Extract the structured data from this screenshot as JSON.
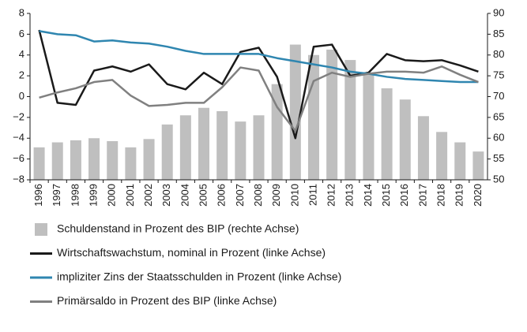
{
  "chart_data": {
    "type": "combo",
    "categories": [
      "1996",
      "1997",
      "1998",
      "1999",
      "2000",
      "2001",
      "2002",
      "2003",
      "2004",
      "2005",
      "2006",
      "2007",
      "2008",
      "2009",
      "2010",
      "2011",
      "2012",
      "2013",
      "2014",
      "2015",
      "2016",
      "2017",
      "2018",
      "2019",
      "2020"
    ],
    "ylim": [
      -8,
      8
    ],
    "yticks": [
      {
        "value": -8,
        "label": "−8"
      },
      {
        "value": -6,
        "label": "−6"
      },
      {
        "value": -4,
        "label": "−4"
      },
      {
        "value": -2,
        "label": "−2"
      },
      0,
      2,
      4,
      6,
      8
    ],
    "y2lim": [
      50,
      90
    ],
    "y2ticks": [
      50,
      55,
      60,
      65,
      70,
      75,
      80,
      85,
      90
    ],
    "series": [
      {
        "name": "Schuldenstand in Prozent des BIP (rechte Achse)",
        "type": "bar",
        "axis": "y2",
        "color": "#bfbfbf",
        "values": [
          57.8,
          59,
          59.5,
          60,
          59.3,
          57.8,
          59.8,
          63.3,
          65.5,
          67.3,
          66.5,
          64,
          65.5,
          73,
          82.5,
          80,
          81.3,
          78.8,
          75.5,
          72,
          69.3,
          65.3,
          61.5,
          59,
          56.8
        ]
      },
      {
        "name": "Wirtschaftswachstum, nominal in Prozent (linke Achse)",
        "type": "line",
        "color": "#1a1a1a",
        "values": [
          6.4,
          -0.6,
          -0.8,
          2.5,
          2.9,
          2.4,
          3.1,
          1.2,
          0.7,
          2.3,
          1.2,
          4.3,
          4.7,
          1.9,
          -4.0,
          4.8,
          5.0,
          2.0,
          2.3,
          4.1,
          3.5,
          3.4,
          3.5,
          3.0,
          2.4
        ]
      },
      {
        "name": "impliziter Zins der Staatsschulden in Prozent (linke Achse)",
        "type": "line",
        "color": "#2f86b0",
        "values": [
          6.3,
          6.0,
          5.9,
          5.3,
          5.4,
          5.2,
          5.1,
          4.8,
          4.4,
          4.1,
          4.1,
          4.1,
          4.1,
          3.7,
          3.4,
          3.1,
          2.8,
          2.4,
          2.2,
          1.9,
          1.7,
          1.6,
          1.5,
          1.4,
          1.4
        ]
      },
      {
        "name": "Primärsaldo in Prozent des BIP (linke Achse)",
        "type": "line",
        "color": "#808080",
        "values": [
          -0.1,
          0.4,
          0.8,
          1.4,
          1.6,
          0.1,
          -0.9,
          -0.8,
          -0.6,
          -0.6,
          0.9,
          2.8,
          2.5,
          -1.0,
          -3.3,
          1.5,
          2.3,
          1.9,
          2.2,
          2.4,
          2.4,
          2.3,
          2.9,
          2.1,
          1.4
        ]
      }
    ]
  }
}
